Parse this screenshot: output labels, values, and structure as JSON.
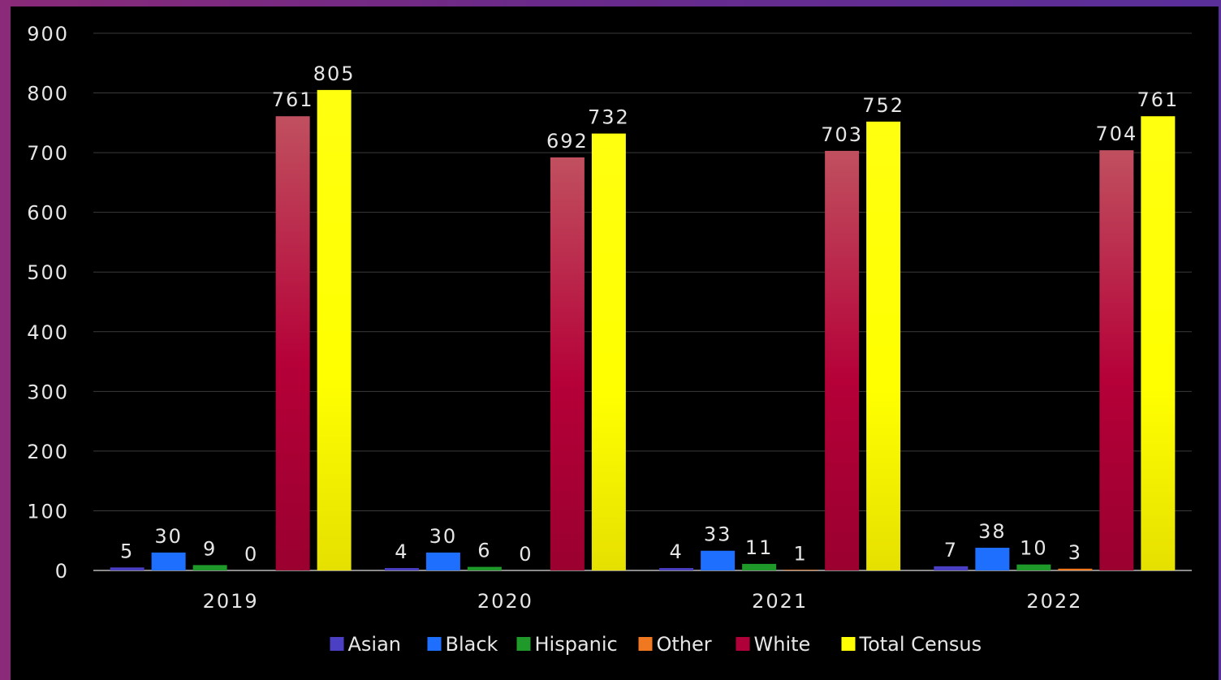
{
  "chart_data": {
    "type": "bar",
    "categories": [
      "2019",
      "2020",
      "2021",
      "2022"
    ],
    "series": [
      {
        "name": "Asian",
        "color": "#4b3fc4",
        "values": [
          5,
          4,
          4,
          7
        ]
      },
      {
        "name": "Black",
        "color": "#1f6fff",
        "values": [
          30,
          30,
          33,
          38
        ]
      },
      {
        "name": "Hispanic",
        "color": "#1f9a2a",
        "values": [
          9,
          6,
          11,
          10
        ]
      },
      {
        "name": "Other",
        "color": "#f07820",
        "values": [
          0,
          0,
          1,
          3
        ]
      },
      {
        "name": "White",
        "color": "#b0003a",
        "values": [
          761,
          692,
          703,
          704
        ]
      },
      {
        "name": "Total Census",
        "color": "#ffff00",
        "values": [
          805,
          732,
          752,
          761
        ]
      }
    ],
    "ylim": [
      0,
      900
    ],
    "yticks": [
      0,
      100,
      200,
      300,
      400,
      500,
      600,
      700,
      800,
      900
    ],
    "grid": true,
    "legend_position": "bottom",
    "title": "",
    "xlabel": "",
    "ylabel": ""
  }
}
